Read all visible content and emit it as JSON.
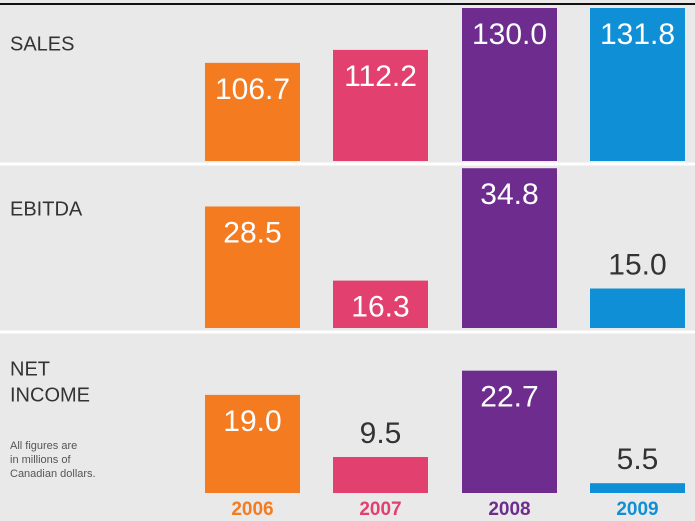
{
  "chart_data": [
    {
      "type": "bar",
      "title": [
        "SALES"
      ],
      "values": [
        106.7,
        112.2,
        130.0,
        131.8
      ],
      "value_labels": [
        "106.7",
        "112.2",
        "130.0",
        "131.8"
      ],
      "ylim": [
        65,
        130
      ]
    },
    {
      "type": "bar",
      "title": [
        "EBITDA"
      ],
      "values": [
        28.5,
        16.3,
        34.8,
        15.0
      ],
      "value_labels": [
        "28.5",
        "16.3",
        "34.8",
        "15.0"
      ],
      "ylim": [
        8.5,
        35
      ]
    },
    {
      "type": "bar",
      "title": [
        "NET",
        "INCOME"
      ],
      "values": [
        19.0,
        9.5,
        22.7,
        5.5
      ],
      "value_labels": [
        "19.0",
        "9.5",
        "22.7",
        "5.5"
      ],
      "ylim": [
        4,
        28
      ],
      "note": [
        "All figures are",
        "in millions of",
        "Canadian dollars."
      ],
      "categories": [
        "2006",
        "2007",
        "2008",
        "2009"
      ],
      "colors": [
        "#f47b20",
        "#e2406f",
        "#6d2c8e",
        "#0f8fd6"
      ]
    }
  ]
}
